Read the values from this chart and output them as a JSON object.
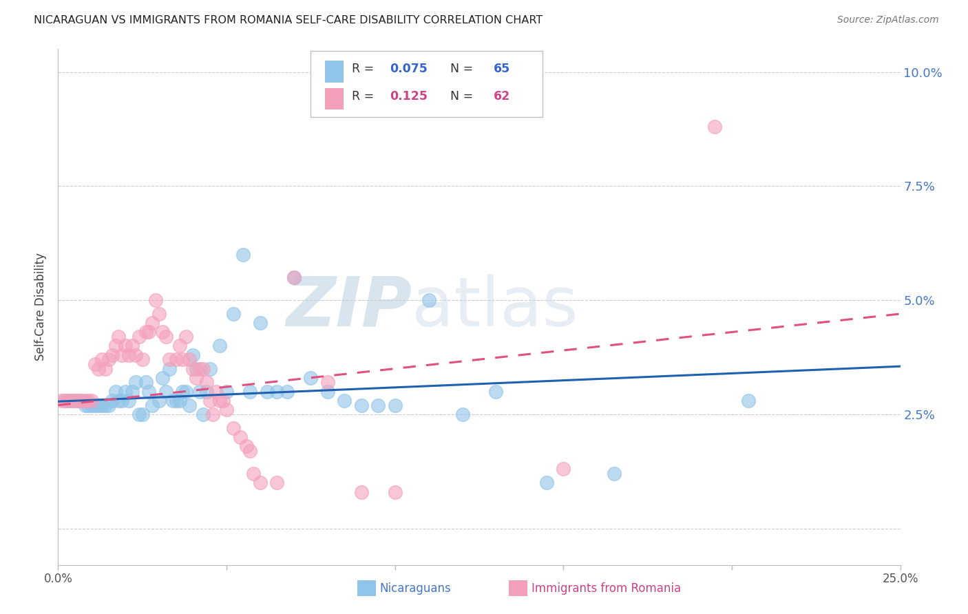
{
  "title": "NICARAGUAN VS IMMIGRANTS FROM ROMANIA SELF-CARE DISABILITY CORRELATION CHART",
  "source": "Source: ZipAtlas.com",
  "ylabel_label": "Self-Care Disability",
  "xlim": [
    0.0,
    0.25
  ],
  "ylim": [
    -0.008,
    0.105
  ],
  "blue_color": "#90c4e8",
  "pink_color": "#f4a0bb",
  "blue_line_color": "#2060b0",
  "pink_line_color": "#e05080",
  "blue_R": 0.075,
  "blue_N": 65,
  "pink_R": 0.125,
  "pink_N": 62,
  "watermark_zip": "ZIP",
  "watermark_atlas": "atlas",
  "blue_scatter_x": [
    0.002,
    0.003,
    0.004,
    0.005,
    0.006,
    0.007,
    0.008,
    0.009,
    0.01,
    0.011,
    0.012,
    0.013,
    0.014,
    0.015,
    0.016,
    0.017,
    0.018,
    0.019,
    0.02,
    0.021,
    0.022,
    0.023,
    0.024,
    0.025,
    0.026,
    0.027,
    0.028,
    0.03,
    0.031,
    0.032,
    0.033,
    0.034,
    0.035,
    0.036,
    0.037,
    0.038,
    0.039,
    0.04,
    0.041,
    0.042,
    0.043,
    0.044,
    0.045,
    0.048,
    0.05,
    0.052,
    0.055,
    0.057,
    0.06,
    0.062,
    0.065,
    0.068,
    0.07,
    0.075,
    0.08,
    0.085,
    0.09,
    0.095,
    0.1,
    0.11,
    0.12,
    0.13,
    0.145,
    0.165,
    0.205
  ],
  "blue_scatter_y": [
    0.028,
    0.028,
    0.028,
    0.028,
    0.028,
    0.028,
    0.027,
    0.027,
    0.027,
    0.027,
    0.027,
    0.027,
    0.027,
    0.027,
    0.028,
    0.03,
    0.028,
    0.028,
    0.03,
    0.028,
    0.03,
    0.032,
    0.025,
    0.025,
    0.032,
    0.03,
    0.027,
    0.028,
    0.033,
    0.03,
    0.035,
    0.028,
    0.028,
    0.028,
    0.03,
    0.03,
    0.027,
    0.038,
    0.035,
    0.03,
    0.025,
    0.03,
    0.035,
    0.04,
    0.03,
    0.047,
    0.06,
    0.03,
    0.045,
    0.03,
    0.03,
    0.03,
    0.055,
    0.033,
    0.03,
    0.028,
    0.027,
    0.027,
    0.027,
    0.05,
    0.025,
    0.03,
    0.01,
    0.012,
    0.028
  ],
  "pink_scatter_x": [
    0.001,
    0.002,
    0.003,
    0.004,
    0.005,
    0.006,
    0.007,
    0.008,
    0.009,
    0.01,
    0.011,
    0.012,
    0.013,
    0.014,
    0.015,
    0.016,
    0.017,
    0.018,
    0.019,
    0.02,
    0.021,
    0.022,
    0.023,
    0.024,
    0.025,
    0.026,
    0.027,
    0.028,
    0.029,
    0.03,
    0.031,
    0.032,
    0.033,
    0.035,
    0.036,
    0.037,
    0.038,
    0.039,
    0.04,
    0.041,
    0.042,
    0.043,
    0.044,
    0.045,
    0.046,
    0.047,
    0.048,
    0.049,
    0.05,
    0.052,
    0.054,
    0.056,
    0.057,
    0.058,
    0.06,
    0.065,
    0.07,
    0.08,
    0.09,
    0.1,
    0.15,
    0.195
  ],
  "pink_scatter_y": [
    0.028,
    0.028,
    0.028,
    0.028,
    0.028,
    0.028,
    0.028,
    0.028,
    0.028,
    0.028,
    0.036,
    0.035,
    0.037,
    0.035,
    0.037,
    0.038,
    0.04,
    0.042,
    0.038,
    0.04,
    0.038,
    0.04,
    0.038,
    0.042,
    0.037,
    0.043,
    0.043,
    0.045,
    0.05,
    0.047,
    0.043,
    0.042,
    0.037,
    0.037,
    0.04,
    0.037,
    0.042,
    0.037,
    0.035,
    0.033,
    0.035,
    0.035,
    0.032,
    0.028,
    0.025,
    0.03,
    0.028,
    0.028,
    0.026,
    0.022,
    0.02,
    0.018,
    0.017,
    0.012,
    0.01,
    0.01,
    0.055,
    0.032,
    0.008,
    0.008,
    0.013,
    0.088
  ],
  "blue_line_x0": 0.0,
  "blue_line_x1": 0.25,
  "blue_line_y0": 0.0278,
  "blue_line_y1": 0.0355,
  "pink_line_x0": 0.0,
  "pink_line_x1": 0.25,
  "pink_line_y0": 0.027,
  "pink_line_y1": 0.047
}
